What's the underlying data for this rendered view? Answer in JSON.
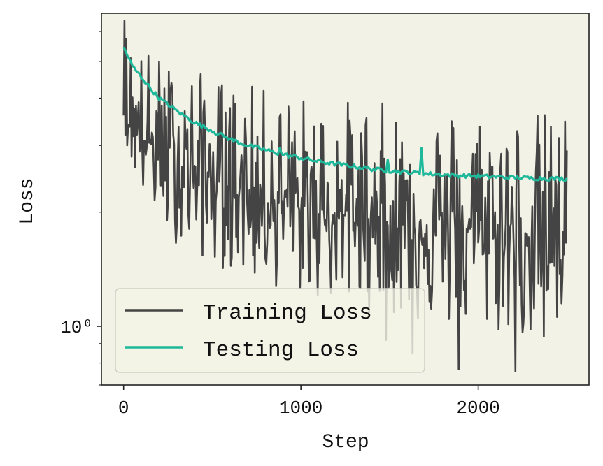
{
  "chart_data": {
    "type": "line",
    "title": "",
    "xlabel": "Step",
    "ylabel": "Loss",
    "yscale": "log",
    "xlim": [
      -125,
      2625
    ],
    "ylim": [
      0.7,
      6.7
    ],
    "x_ticks": [
      0,
      1000,
      2000
    ],
    "x_tick_labels": [
      "0",
      "1000",
      "2000"
    ],
    "y_major_ticks": [
      1.0
    ],
    "y_major_tick_labels": [
      "10⁰"
    ],
    "y_minor_ticks": [
      0.7,
      0.8,
      0.9,
      2,
      3,
      4,
      5,
      6
    ],
    "grid": false,
    "legend_position": "lower-left",
    "background": "#f3f2e6",
    "series": [
      {
        "name": "Training Loss",
        "color": "#444444",
        "style": "noisy",
        "x_range": [
          0,
          2500
        ],
        "trend_x": [
          0,
          100,
          250,
          500,
          750,
          1000,
          1500,
          2000,
          2500
        ],
        "trend_y": [
          3.6,
          3.15,
          2.8,
          2.45,
          2.2,
          2.05,
          1.88,
          1.8,
          1.75
        ],
        "spike_max": [
          6.5,
          5.6,
          5.0,
          4.6,
          4.3,
          4.1,
          3.9,
          3.8,
          3.7
        ],
        "dip_min": [
          3.0,
          2.2,
          1.7,
          1.45,
          1.3,
          1.2,
          1.05,
          0.95,
          0.9
        ],
        "extreme_dips": [
          [
            1480,
            0.92
          ],
          [
            1890,
            0.77
          ],
          [
            2210,
            0.76
          ],
          [
            1630,
            0.85
          ],
          [
            2370,
            0.94
          ]
        ]
      },
      {
        "name": "Testing Loss",
        "color": "#1eb89b",
        "style": "smooth",
        "x": [
          0,
          50,
          100,
          150,
          200,
          300,
          400,
          500,
          600,
          700,
          800,
          900,
          1000,
          1100,
          1200,
          1300,
          1400,
          1500,
          1600,
          1700,
          1800,
          1900,
          2000,
          2100,
          2200,
          2300,
          2400,
          2500
        ],
        "values": [
          5.45,
          4.85,
          4.55,
          4.25,
          4.0,
          3.7,
          3.45,
          3.28,
          3.12,
          3.0,
          2.92,
          2.84,
          2.78,
          2.72,
          2.68,
          2.64,
          2.6,
          2.57,
          2.55,
          2.53,
          2.51,
          2.5,
          2.49,
          2.48,
          2.47,
          2.46,
          2.455,
          2.45
        ],
        "spikes": [
          [
            880,
            2.95
          ],
          [
            1490,
            2.75
          ],
          [
            1680,
            2.95
          ],
          [
            520,
            3.2
          ]
        ]
      }
    ]
  }
}
